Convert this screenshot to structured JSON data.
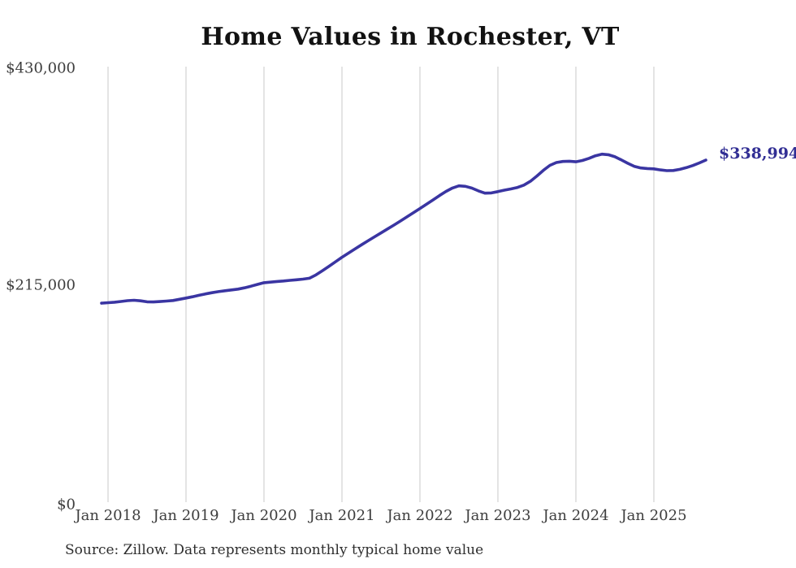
{
  "title": "Home Values in Rochester, VT",
  "source_note": "Source: Zillow. Data represents monthly typical home value",
  "colors": {
    "line": "#3a35a2",
    "end_label_text": "#312e94",
    "grid": "#c9c9c9",
    "axis_text": "#3d3d3d",
    "title_text": "#121212",
    "background": "#ffffff"
  },
  "chart_data": {
    "type": "line",
    "title": "Home Values in Rochester, VT",
    "xlabel": "",
    "ylabel": "",
    "ylim": [
      0,
      430000
    ],
    "grid": "vertical-only",
    "legend": "none",
    "frequency": "monthly",
    "x_start": "2017-12",
    "x_end": "2025-09",
    "end_label": "$338,994",
    "y_ticks": [
      {
        "value": 0,
        "label": "$0"
      },
      {
        "value": 215000,
        "label": "$215,000"
      },
      {
        "value": 430000,
        "label": "$430,000"
      }
    ],
    "x_tick_labels": [
      "Jan 2018",
      "Jan 2019",
      "Jan 2020",
      "Jan 2021",
      "Jan 2022",
      "Jan 2023",
      "Jan 2024",
      "Jan 2025"
    ],
    "series": [
      {
        "name": "Typical home value",
        "final_value": 338994,
        "values": [
          197200,
          197700,
          198200,
          198900,
          199700,
          200100,
          199500,
          198600,
          198400,
          198800,
          199300,
          199900,
          201100,
          202300,
          203600,
          205000,
          206400,
          207600,
          208600,
          209500,
          210300,
          211100,
          212400,
          214000,
          215800,
          217500,
          218100,
          218700,
          219200,
          219800,
          220400,
          221000,
          221900,
          225200,
          229400,
          233800,
          238200,
          242700,
          246800,
          250900,
          255000,
          259000,
          262900,
          266800,
          270700,
          274600,
          278600,
          282700,
          286900,
          291000,
          295200,
          299500,
          303800,
          307900,
          311300,
          313500,
          313000,
          311200,
          308500,
          306200,
          306500,
          307800,
          309200,
          310400,
          311900,
          314200,
          318000,
          323200,
          328900,
          333800,
          336600,
          337600,
          337900,
          337300,
          338600,
          340700,
          343300,
          344900,
          344300,
          342300,
          339200,
          335800,
          332800,
          331200,
          330600,
          330300,
          329300,
          328500,
          328700,
          329800,
          331500,
          333600,
          336200,
          338994
        ]
      }
    ]
  }
}
